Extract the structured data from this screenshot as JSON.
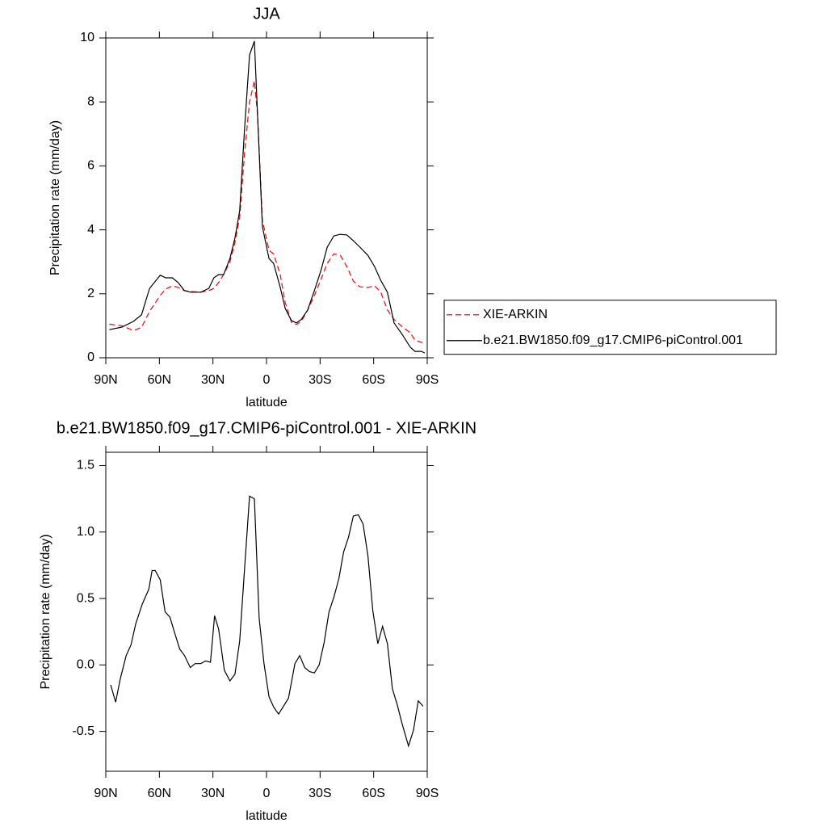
{
  "chart_data": [
    {
      "type": "line",
      "title": "JJA",
      "xlabel": "latitude",
      "ylabel": "Precipitation rate (mm/day)",
      "x": [
        88,
        81,
        74.5,
        70,
        65.5,
        59.5,
        56.4,
        52.7,
        49.5,
        46,
        42.3,
        36.8,
        32.3,
        29.5,
        26.8,
        24,
        20.5,
        17.7,
        15,
        12.3,
        9.5,
        6.8,
        5,
        2.3,
        -1.4,
        -4,
        -7.7,
        -10.5,
        -14,
        -16.8,
        -19.5,
        -23,
        -26.8,
        -30.5,
        -34,
        -37.7,
        -41.4,
        -45,
        -48.6,
        -52.3,
        -56.8,
        -60.5,
        -64,
        -67.7,
        -71.4,
        -76,
        -80.5,
        -83.2,
        -86.8,
        -88.6
      ],
      "series": [
        {
          "name": "XIE-ARKIN",
          "color": "#ff0000",
          "linestyle": "dashed",
          "values": [
            1.05,
            1.0,
            0.85,
            0.95,
            1.45,
            1.95,
            2.15,
            2.25,
            2.2,
            2.1,
            2.07,
            2.05,
            2.1,
            2.17,
            2.35,
            2.6,
            3.0,
            3.6,
            4.4,
            6.4,
            8.0,
            8.66,
            7.6,
            4.3,
            3.36,
            3.25,
            2.6,
            1.72,
            1.1,
            1.04,
            1.14,
            1.49,
            1.95,
            2.45,
            2.95,
            3.25,
            3.2,
            2.85,
            2.4,
            2.22,
            2.2,
            2.25,
            2.05,
            1.5,
            1.2,
            0.97,
            0.78,
            0.55,
            0.48,
            0.48
          ]
        },
        {
          "name": "b.e21.BW1850.f09_g17.CMIP6-piControl.001",
          "color": "#000000",
          "linestyle": "solid",
          "values": [
            0.88,
            0.96,
            1.14,
            1.34,
            2.17,
            2.58,
            2.5,
            2.5,
            2.35,
            2.1,
            2.05,
            2.05,
            2.17,
            2.5,
            2.6,
            2.6,
            3.1,
            3.74,
            4.6,
            7.15,
            9.47,
            9.9,
            7.6,
            4.1,
            3.1,
            2.95,
            2.2,
            1.54,
            1.16,
            1.09,
            1.2,
            1.49,
            2.1,
            2.73,
            3.46,
            3.81,
            3.86,
            3.84,
            3.66,
            3.46,
            3.2,
            2.85,
            2.42,
            2.05,
            1.09,
            0.73,
            0.33,
            0.2,
            0.2,
            0.15
          ]
        }
      ],
      "xlim": [
        90,
        -90
      ],
      "xticks": [
        {
          "value": 90,
          "label": "90N"
        },
        {
          "value": 60,
          "label": "60N"
        },
        {
          "value": 30,
          "label": "30N"
        },
        0,
        {
          "value": -30,
          "label": "30S"
        },
        {
          "value": -60,
          "label": "60S"
        },
        {
          "value": -90,
          "label": "90S"
        }
      ],
      "ylim": [
        0,
        10
      ],
      "yticks": [
        0,
        2,
        4,
        6,
        8,
        10
      ],
      "legend": "right"
    },
    {
      "type": "line",
      "title": "b.e21.BW1850.f09_g17.CMIP6-piControl.001 - XIE-ARKIN",
      "xlabel": "latitude",
      "ylabel": "Precipitation rate (mm/day)",
      "x": [
        87.3,
        84.5,
        81.8,
        78.6,
        75.9,
        73.2,
        69.5,
        65.9,
        64.1,
        62.3,
        59.5,
        56.8,
        54.1,
        51.4,
        48.6,
        45.9,
        42.7,
        40,
        36.8,
        34.1,
        31.4,
        29.1,
        26.8,
        23.6,
        20.5,
        17.7,
        15,
        12.3,
        9.5,
        6.8,
        4.1,
        1.4,
        -1.4,
        -4.1,
        -6.8,
        -9.5,
        -12.3,
        -15.9,
        -18.6,
        -21.4,
        -24.1,
        -26.8,
        -29.5,
        -32.3,
        -35,
        -37.7,
        -40.5,
        -43.2,
        -45.9,
        -48.6,
        -51.4,
        -54.1,
        -56.8,
        -59.5,
        -62.3,
        -65,
        -67.7,
        -70.5,
        -73.2,
        -75.9,
        -79.5,
        -82.3,
        -85,
        -87.7
      ],
      "series": [
        {
          "color": "#000000",
          "linestyle": "solid",
          "values": [
            -0.15,
            -0.28,
            -0.1,
            0.07,
            0.15,
            0.31,
            0.46,
            0.57,
            0.71,
            0.71,
            0.64,
            0.4,
            0.36,
            0.24,
            0.12,
            0.07,
            -0.02,
            0.01,
            0.01,
            0.03,
            0.02,
            0.37,
            0.27,
            -0.04,
            -0.12,
            -0.07,
            0.18,
            0.72,
            1.27,
            1.25,
            0.35,
            0.01,
            -0.24,
            -0.32,
            -0.37,
            -0.31,
            -0.25,
            0.01,
            0.07,
            -0.02,
            -0.05,
            -0.06,
            0.0,
            0.17,
            0.4,
            0.51,
            0.65,
            0.85,
            0.96,
            1.12,
            1.13,
            1.06,
            0.82,
            0.41,
            0.16,
            0.29,
            0.16,
            -0.18,
            -0.3,
            -0.44,
            -0.61,
            -0.49,
            -0.27,
            -0.31
          ]
        }
      ],
      "xlim": [
        90,
        -90
      ],
      "xticks": [
        {
          "value": 90,
          "label": "90N"
        },
        {
          "value": 60,
          "label": "60N"
        },
        {
          "value": 30,
          "label": "30N"
        },
        0,
        {
          "value": -30,
          "label": "30S"
        },
        {
          "value": -60,
          "label": "60S"
        },
        {
          "value": -90,
          "label": "90S"
        }
      ],
      "ylim": [
        -0.8,
        1.6
      ],
      "yticks": [
        -0.5,
        {
          "value": 0,
          "label": "0.0"
        },
        0.5,
        {
          "value": 1,
          "label": "1.0"
        },
        1.5
      ]
    }
  ]
}
